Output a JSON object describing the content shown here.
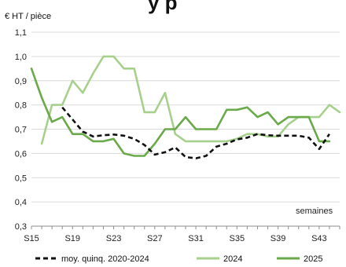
{
  "header_fragment": "y     p",
  "chart_data": {
    "type": "line",
    "unit_label": "€ HT / pièce",
    "xlabel": "semaines",
    "x_ticks": [
      "S15",
      "S19",
      "S23",
      "S27",
      "S31",
      "S35",
      "S39",
      "S43"
    ],
    "y_ticks": [
      "0,3",
      "0,4",
      "0,5",
      "0,6",
      "0,7",
      "0,8",
      "0,9",
      "1,0",
      "1,1"
    ],
    "xlim": [
      15,
      45
    ],
    "ylim": [
      0.3,
      1.1
    ],
    "grid": true,
    "legend_position": "bottom",
    "series": [
      {
        "name": "moy. quinq. 2020-2024",
        "color": "#111111",
        "style": "dashed",
        "x": [
          18,
          19,
          20,
          21,
          22,
          23,
          24,
          25,
          26,
          27,
          28,
          29,
          30,
          31,
          32,
          33,
          34,
          35,
          36,
          37,
          38,
          39,
          40,
          41,
          42,
          43,
          44
        ],
        "y": [
          0.79,
          0.74,
          0.69,
          0.67,
          0.675,
          0.678,
          0.673,
          0.66,
          0.635,
          0.595,
          0.605,
          0.625,
          0.585,
          0.58,
          0.59,
          0.628,
          0.64,
          0.658,
          0.665,
          0.68,
          0.675,
          0.673,
          0.673,
          0.673,
          0.665,
          0.618,
          0.68
        ]
      },
      {
        "name": "2024",
        "color": "#a8d08d",
        "style": "solid",
        "x": [
          16,
          17,
          18,
          19,
          20,
          21,
          22,
          23,
          24,
          25,
          26,
          27,
          28,
          29,
          30,
          31,
          32,
          33,
          34,
          35,
          36,
          37,
          38,
          39,
          40,
          41,
          42,
          43,
          44,
          45
        ],
        "y": [
          0.64,
          0.8,
          0.8,
          0.9,
          0.85,
          0.93,
          1.0,
          1.0,
          0.95,
          0.95,
          0.77,
          0.77,
          0.85,
          0.68,
          0.65,
          0.65,
          0.65,
          0.65,
          0.65,
          0.66,
          0.68,
          0.68,
          0.67,
          0.67,
          0.72,
          0.75,
          0.75,
          0.75,
          0.8,
          0.77
        ]
      },
      {
        "name": "2025",
        "color": "#6aaa4a",
        "style": "solid",
        "x": [
          15,
          16,
          17,
          18,
          19,
          20,
          21,
          22,
          23,
          24,
          25,
          26,
          27,
          28,
          29,
          30,
          31,
          32,
          33,
          34,
          35,
          36,
          37,
          38,
          39,
          40,
          41,
          42,
          43,
          44
        ],
        "y": [
          0.95,
          0.83,
          0.73,
          0.75,
          0.68,
          0.68,
          0.65,
          0.65,
          0.66,
          0.6,
          0.59,
          0.59,
          0.64,
          0.7,
          0.7,
          0.75,
          0.7,
          0.7,
          0.7,
          0.78,
          0.78,
          0.79,
          0.75,
          0.77,
          0.72,
          0.75,
          0.75,
          0.75,
          0.65,
          0.65
        ]
      }
    ]
  }
}
